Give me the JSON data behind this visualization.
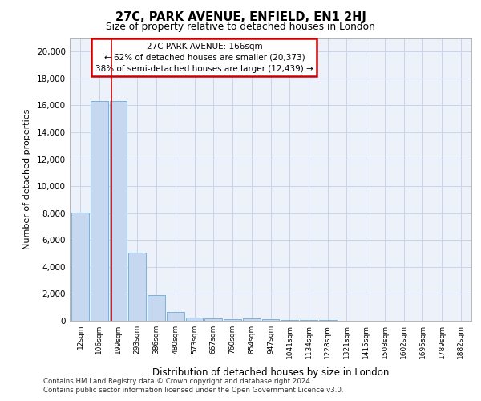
{
  "title1": "27C, PARK AVENUE, ENFIELD, EN1 2HJ",
  "title2": "Size of property relative to detached houses in London",
  "xlabel": "Distribution of detached houses by size in London",
  "ylabel": "Number of detached properties",
  "property_label": "27C PARK AVENUE: 166sqm",
  "pct_smaller": 62,
  "n_smaller": 20373,
  "pct_larger": 38,
  "n_larger": 12439,
  "categories": [
    "12sqm",
    "106sqm",
    "199sqm",
    "293sqm",
    "386sqm",
    "480sqm",
    "573sqm",
    "667sqm",
    "760sqm",
    "854sqm",
    "947sqm",
    "1041sqm",
    "1134sqm",
    "1228sqm",
    "1321sqm",
    "1415sqm",
    "1508sqm",
    "1602sqm",
    "1695sqm",
    "1789sqm",
    "1882sqm"
  ],
  "bar_heights": [
    8050,
    16350,
    16350,
    5050,
    1900,
    650,
    250,
    200,
    130,
    190,
    100,
    60,
    50,
    30,
    20,
    10,
    10,
    5,
    5,
    5,
    5
  ],
  "bar_color": "#c5d8f0",
  "bar_edge_color": "#6fa8d4",
  "red_line_x": 1.65,
  "ylim": [
    0,
    21000
  ],
  "yticks": [
    0,
    2000,
    4000,
    6000,
    8000,
    10000,
    12000,
    14000,
    16000,
    18000,
    20000
  ],
  "annotation_box_color": "#ffffff",
  "annotation_box_edge": "#cc0000",
  "grid_color": "#c8d4e8",
  "background_color": "#edf2fa",
  "footer1": "Contains HM Land Registry data © Crown copyright and database right 2024.",
  "footer2": "Contains public sector information licensed under the Open Government Licence v3.0."
}
